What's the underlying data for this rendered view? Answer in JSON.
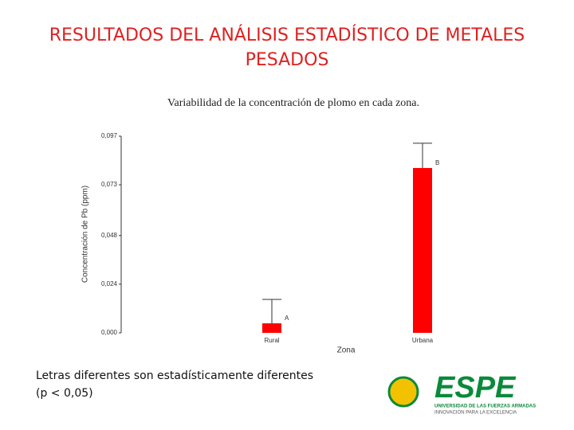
{
  "chart_data": {
    "type": "bar",
    "title": "RESULTADOS DEL ANÁLISIS ESTADÍSTICO DE METALES PESADOS",
    "subtitle": "Variabilidad de la concentración de plomo en cada zona.",
    "x_label": "Zona",
    "y_label": "Concentración de Pb (ppm)",
    "categories": [
      "Rural",
      "Urbana"
    ],
    "values": [
      0.0047,
      0.0813
    ],
    "errors": [
      0.0118,
      0.0122
    ],
    "annotations": [
      "A",
      "B"
    ],
    "color": "#ff0000",
    "ylim": [
      0,
      0.097
    ],
    "yticks": [
      {
        "value": 0,
        "label": "0,000"
      },
      {
        "value": 0.024,
        "label": "0,024"
      },
      {
        "value": 0.048,
        "label": "0,048"
      },
      {
        "value": 0.073,
        "label": "0,073"
      },
      {
        "value": 0.097,
        "label": "0,097"
      }
    ],
    "grid": false
  },
  "footnote": [
    "Letras diferentes son estadísticamente diferentes",
    "(p < 0,05)"
  ],
  "logo": {
    "name": "ESPE",
    "line1": "UNIVERSIDAD DE LAS FUERZAS ARMADAS",
    "line2": "INNOVACIÓN PARA LA EXCELENCIA"
  }
}
